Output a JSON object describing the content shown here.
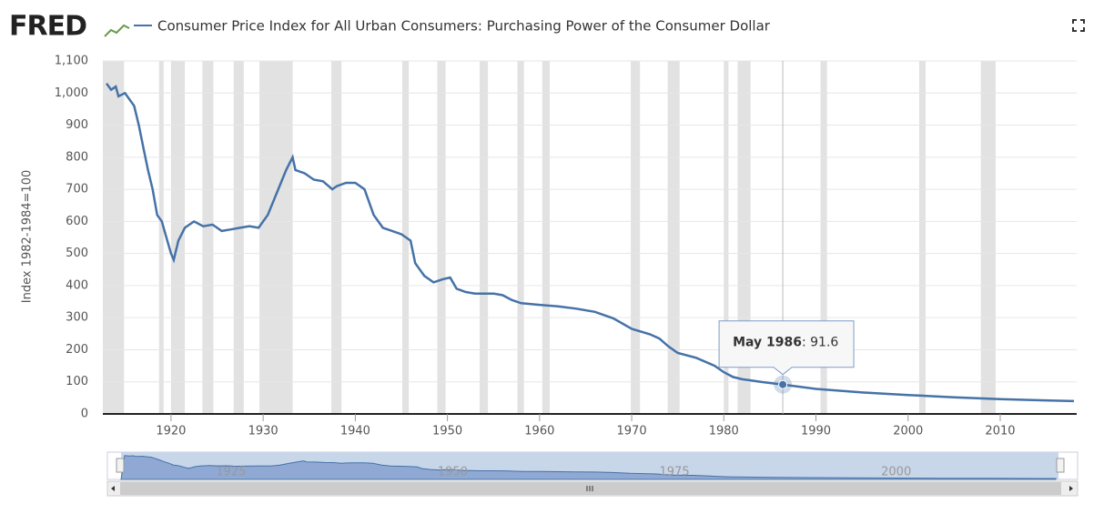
{
  "logo": "FRED",
  "chart_data": {
    "type": "line",
    "ylabel": "Index 1982-1984=100",
    "series": [
      {
        "name": "Consumer Price Index for All Urban Consumers: Purchasing Power of the Consumer Dollar",
        "color": "#4572a7",
        "values": [
          1030,
          1010,
          1020,
          990,
          1000,
          960,
          900,
          830,
          760,
          700,
          620,
          600,
          550,
          500,
          480,
          540,
          580,
          600,
          585,
          590,
          570,
          575,
          580,
          585,
          580,
          620,
          690,
          760,
          800,
          760,
          750,
          730,
          725,
          700,
          710,
          720,
          720,
          700,
          620,
          580,
          570,
          560,
          540,
          470,
          430,
          410,
          420,
          425,
          390,
          380,
          375,
          375,
          370,
          355,
          345,
          340,
          335,
          328,
          318,
          298,
          265,
          248,
          235,
          210,
          190,
          175,
          150,
          130,
          115,
          108,
          104,
          100,
          91.6,
          78,
          67,
          59,
          52,
          46,
          40
        ]
      }
    ],
    "x": [
      1913.0,
      1913.5,
      1914.0,
      1914.3,
      1915.0,
      1916.0,
      1916.5,
      1917.0,
      1917.5,
      1918.0,
      1918.5,
      1919.0,
      1919.5,
      1920.0,
      1920.3,
      1920.8,
      1921.5,
      1922.5,
      1923.5,
      1924.5,
      1925.5,
      1926.5,
      1927.5,
      1928.5,
      1929.5,
      1930.5,
      1931.5,
      1932.5,
      1933.2,
      1933.5,
      1934.5,
      1935.5,
      1936.5,
      1937.5,
      1938.0,
      1939.0,
      1940.0,
      1941.0,
      1942.0,
      1943.0,
      1944.0,
      1945.0,
      1946.0,
      1946.5,
      1947.5,
      1948.5,
      1949.5,
      1950.3,
      1951.0,
      1952.0,
      1953.0,
      1955.0,
      1956.0,
      1957.0,
      1958.0,
      1960.0,
      1962.0,
      1964.0,
      1966.0,
      1968.0,
      1970.0,
      1972.0,
      1973.0,
      1974.0,
      1975.0,
      1977.0,
      1979.0,
      1980.0,
      1981.0,
      1982.0,
      1983.0,
      1984.0,
      1986.4,
      1990.0,
      1995.0,
      2000.0,
      2005.0,
      2010.0,
      2018.0
    ],
    "xlim": [
      1912.6,
      2018.3
    ],
    "xticks": [
      1920,
      1930,
      1940,
      1950,
      1960,
      1970,
      1980,
      1990,
      2000,
      2010
    ],
    "ylim": [
      0,
      1100
    ],
    "yticks": [
      0,
      100,
      200,
      300,
      400,
      500,
      600,
      700,
      800,
      900,
      {
        "value": 1000,
        "label": "1,000"
      },
      {
        "value": 1100,
        "label": "1,100"
      }
    ],
    "grid": true,
    "recession_color": "#e2e2e2",
    "recessions": [
      [
        1912.6,
        1914.9
      ],
      [
        1918.7,
        1919.2
      ],
      [
        1920.0,
        1921.5
      ],
      [
        1923.4,
        1924.6
      ],
      [
        1926.8,
        1927.9
      ],
      [
        1929.6,
        1933.2
      ],
      [
        1937.4,
        1938.5
      ],
      [
        1945.1,
        1945.8
      ],
      [
        1948.9,
        1949.8
      ],
      [
        1953.5,
        1954.4
      ],
      [
        1957.6,
        1958.3
      ],
      [
        1960.3,
        1961.1
      ],
      [
        1969.9,
        1970.9
      ],
      [
        1973.9,
        1975.2
      ],
      [
        1980.0,
        1980.5
      ],
      [
        1981.5,
        1982.9
      ],
      [
        1990.5,
        1991.2
      ],
      [
        2001.2,
        2001.9
      ],
      [
        2007.9,
        2009.5
      ]
    ],
    "tooltip": {
      "index": 72,
      "date": "May 1986",
      "text": ": 91.6"
    },
    "navigator_ticks": [
      1925,
      1950,
      1975,
      2000
    ]
  }
}
